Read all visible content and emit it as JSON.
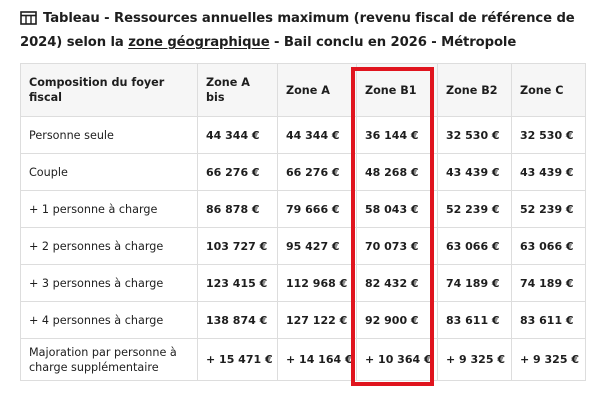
{
  "caption": {
    "part1": "Tableau - Ressources annuelles maximum (revenu fiscal de référence de 2024) selon la ",
    "link": "zone géographique",
    "part2": " - Bail conclu en 2026 - Métropole"
  },
  "table": {
    "headers": [
      "Composition du foyer fiscal",
      "Zone A bis",
      "Zone A",
      "Zone B1",
      "Zone B2",
      "Zone C"
    ],
    "rows": [
      [
        "Personne seule",
        "44 344 €",
        "44 344 €",
        "36 144 €",
        "32 530 €",
        "32 530 €"
      ],
      [
        "Couple",
        "66 276 €",
        "66 276 €",
        "48 268 €",
        "43 439 €",
        "43 439 €"
      ],
      [
        "+ 1 personne à charge",
        "86 878 €",
        "79 666 €",
        "58 043 €",
        "52 239 €",
        "52 239 €"
      ],
      [
        "+ 2 personnes à charge",
        "103 727 €",
        "95 427 €",
        "70 073 €",
        "63 066 €",
        "63 066 €"
      ],
      [
        "+ 3 personnes à charge",
        "123 415 €",
        "112 968 €",
        "82 432 €",
        "74 189 €",
        "74 189 €"
      ],
      [
        "+ 4 personnes à charge",
        "138 874 €",
        "127 122 €",
        "92 900 €",
        "83 611 €",
        "83 611 €"
      ],
      [
        "Majoration par personne à charge supplémentaire",
        "+ 15 471 €",
        "+ 14 164 €",
        "+ 10 364 €",
        "+ 9 325 €",
        "+ 9 325 €"
      ]
    ]
  },
  "highlight": {
    "column": "Zone B1",
    "color": "#e0141e"
  }
}
